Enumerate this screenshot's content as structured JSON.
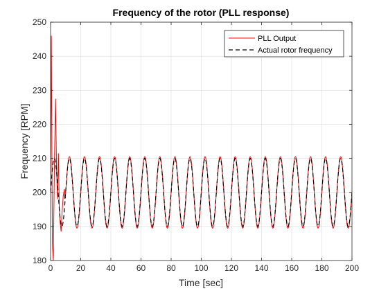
{
  "chart_data": {
    "type": "line",
    "title": "Frequency of the rotor (PLL response)",
    "xlabel": "Time [sec]",
    "ylabel": "Frequency [RPM]",
    "xlim": [
      0,
      200
    ],
    "ylim": [
      180,
      250
    ],
    "xticks": [
      0,
      20,
      40,
      60,
      80,
      100,
      120,
      140,
      160,
      180,
      200
    ],
    "yticks": [
      180,
      190,
      200,
      210,
      220,
      230,
      240,
      250
    ],
    "grid": true,
    "legend_position": "top-right",
    "series": [
      {
        "name": "PLL Output",
        "color": "#ff0000",
        "style": "solid",
        "description": "oscillating between about 189.5 and 210.5 RPM with period 10 s; large initial transient peaking near 246 and dipping near 180 in the first 6 s",
        "offset": 200,
        "amplitude": 10.5,
        "period": 10,
        "phase_deg": 0,
        "transient": [
          [
            0,
            200
          ],
          [
            0.5,
            246
          ],
          [
            1.2,
            185
          ],
          [
            1.8,
            180
          ],
          [
            2.6,
            210
          ],
          [
            3.3,
            227.5
          ],
          [
            4.0,
            206
          ],
          [
            4.6,
            198
          ],
          [
            5.2,
            211.5
          ],
          [
            5.8,
            195
          ],
          [
            6.4,
            191
          ],
          [
            7.0,
            188.5
          ],
          [
            7.6,
            194
          ],
          [
            8.4,
            199
          ],
          [
            9.2,
            201
          ]
        ]
      },
      {
        "name": "Actual rotor frequency",
        "color": "#000000",
        "style": "dashed",
        "description": "sinusoid between 190 and 210 RPM with period 10 s",
        "offset": 200,
        "amplitude": 10,
        "period": 10,
        "phase_deg": 0
      }
    ]
  }
}
